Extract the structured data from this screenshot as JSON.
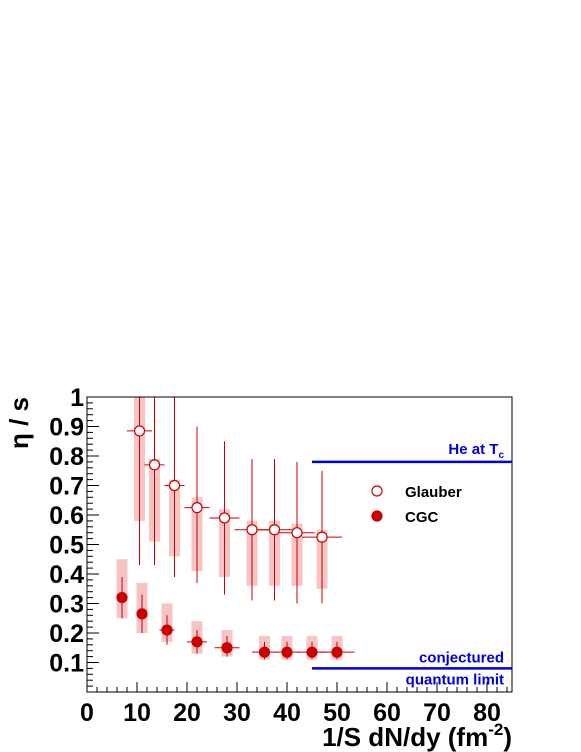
{
  "chart_data": {
    "type": "scatter",
    "title": "",
    "xlabel_main": "1/S dN/dy (fm",
    "xlabel_sup": "-2",
    "xlabel_close": ")",
    "ylabel": "η / s",
    "xlim": [
      0,
      85
    ],
    "ylim": [
      0,
      1
    ],
    "x_ticks": [
      0,
      10,
      20,
      30,
      40,
      50,
      60,
      70,
      80
    ],
    "y_ticks": [
      0.1,
      0.2,
      0.3,
      0.4,
      0.5,
      0.6,
      0.7,
      0.8,
      0.9,
      1
    ],
    "grid": false,
    "legend_position": "right",
    "series": [
      {
        "name": "Glauber",
        "marker": "open-circle",
        "color": "#cc0000",
        "points": [
          {
            "x": 10.5,
            "y": 0.885,
            "x_err": 2.5,
            "y_low": 0.43,
            "y_high": 1.0,
            "sys_low": 0.58,
            "sys_high": 1.0
          },
          {
            "x": 13.5,
            "y": 0.77,
            "x_err": 2.0,
            "y_low": 0.43,
            "y_high": 1.0,
            "sys_low": 0.51,
            "sys_high": 0.79
          },
          {
            "x": 17.5,
            "y": 0.7,
            "x_err": 2.0,
            "y_low": 0.39,
            "y_high": 1.0,
            "sys_low": 0.46,
            "sys_high": 0.72
          },
          {
            "x": 22.0,
            "y": 0.625,
            "x_err": 2.5,
            "y_low": 0.37,
            "y_high": 0.9,
            "sys_low": 0.41,
            "sys_high": 0.66
          },
          {
            "x": 27.5,
            "y": 0.59,
            "x_err": 3.0,
            "y_low": 0.33,
            "y_high": 0.85,
            "sys_low": 0.39,
            "sys_high": 0.62
          },
          {
            "x": 33.0,
            "y": 0.55,
            "x_err": 3.5,
            "y_low": 0.31,
            "y_high": 0.79,
            "sys_low": 0.36,
            "sys_high": 0.58
          },
          {
            "x": 37.5,
            "y": 0.55,
            "x_err": 3.5,
            "y_low": 0.31,
            "y_high": 0.79,
            "sys_low": 0.36,
            "sys_high": 0.58
          },
          {
            "x": 42.0,
            "y": 0.54,
            "x_err": 3.5,
            "y_low": 0.3,
            "y_high": 0.78,
            "sys_low": 0.36,
            "sys_high": 0.57
          },
          {
            "x": 47.0,
            "y": 0.525,
            "x_err": 4.0,
            "y_low": 0.3,
            "y_high": 0.75,
            "sys_low": 0.35,
            "sys_high": 0.55
          }
        ]
      },
      {
        "name": "CGC",
        "marker": "filled-circle",
        "color": "#cc0000",
        "points": [
          {
            "x": 7.0,
            "y": 0.32,
            "x_err": 1.0,
            "y_low": 0.25,
            "y_high": 0.39,
            "sys_low": 0.25,
            "sys_high": 0.45
          },
          {
            "x": 11.0,
            "y": 0.265,
            "x_err": 1.0,
            "y_low": 0.2,
            "y_high": 0.33,
            "sys_low": 0.2,
            "sys_high": 0.37
          },
          {
            "x": 16.0,
            "y": 0.21,
            "x_err": 1.5,
            "y_low": 0.16,
            "y_high": 0.26,
            "sys_low": 0.17,
            "sys_high": 0.3
          },
          {
            "x": 22.0,
            "y": 0.17,
            "x_err": 2.0,
            "y_low": 0.13,
            "y_high": 0.21,
            "sys_low": 0.13,
            "sys_high": 0.24
          },
          {
            "x": 28.0,
            "y": 0.15,
            "x_err": 2.5,
            "y_low": 0.12,
            "y_high": 0.19,
            "sys_low": 0.12,
            "sys_high": 0.21
          },
          {
            "x": 35.5,
            "y": 0.135,
            "x_err": 2.5,
            "y_low": 0.11,
            "y_high": 0.17,
            "sys_low": 0.11,
            "sys_high": 0.19
          },
          {
            "x": 40.0,
            "y": 0.135,
            "x_err": 2.5,
            "y_low": 0.11,
            "y_high": 0.17,
            "sys_low": 0.11,
            "sys_high": 0.19
          },
          {
            "x": 45.0,
            "y": 0.135,
            "x_err": 3.0,
            "y_low": 0.11,
            "y_high": 0.17,
            "sys_low": 0.11,
            "sys_high": 0.19
          },
          {
            "x": 50.0,
            "y": 0.135,
            "x_err": 3.5,
            "y_low": 0.11,
            "y_high": 0.17,
            "sys_low": 0.11,
            "sys_high": 0.19
          }
        ]
      }
    ],
    "reference_lines": [
      {
        "y": 0.78,
        "x_from": 45,
        "x_to": 85,
        "color": "#0000dd",
        "label_main": "He at T",
        "label_sub": "c"
      },
      {
        "y": 0.08,
        "x_from": 45,
        "x_to": 85,
        "color": "#0000dd",
        "label_line1": "conjectured",
        "label_line2": "quantum limit"
      }
    ]
  }
}
